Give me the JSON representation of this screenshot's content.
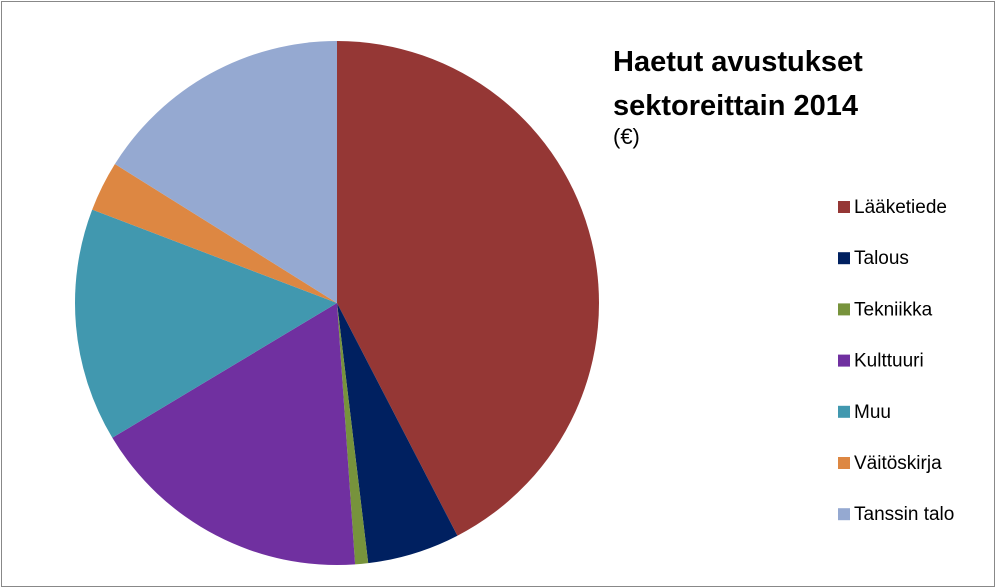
{
  "chart_data": {
    "type": "pie",
    "title": "Haetut avustukset sektoreittain 2014",
    "subtitle": "(€)",
    "categories": [
      "Lääketiede",
      "Talous",
      "Tekniikka",
      "Kulttuuri",
      "Muu",
      "Väitöskirja",
      "Tanssin talo"
    ],
    "values": [
      42.4,
      5.7,
      0.8,
      17.5,
      14.4,
      3.1,
      16.1
    ],
    "colors": [
      "#953735",
      "#002060",
      "#77933c",
      "#7030a0",
      "#4198af",
      "#dd8742",
      "#95a9d1"
    ],
    "legend": "right"
  }
}
